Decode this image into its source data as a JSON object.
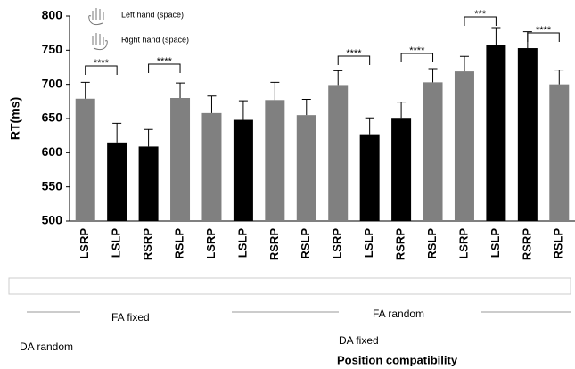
{
  "chart_data": {
    "type": "bar",
    "y_label": "RT(ms)",
    "x_label": "Position compatibility",
    "legend": [
      "Left hand (space)",
      "Right hand (space)"
    ],
    "group_labels": [
      "FA fixed",
      "FA random",
      "DA random",
      "DA fixed"
    ],
    "categories": [
      "LSRP",
      "LSLP",
      "RSRP",
      "RSLP",
      "LSRP",
      "LSLP",
      "RSRP",
      "RSLP",
      "LSRP",
      "LSLP",
      "RSRP",
      "RSLP",
      "LSRP",
      "LSLP",
      "RSRP",
      "RSLP"
    ],
    "values": [
      679,
      615,
      609,
      680,
      658,
      648,
      677,
      655,
      699,
      627,
      651,
      703,
      719,
      757,
      753,
      700
    ],
    "errors": [
      24,
      28,
      25,
      22,
      25,
      28,
      26,
      23,
      21,
      24,
      23,
      20,
      22,
      26,
      24,
      21
    ],
    "colors": [
      "#808080",
      "#000000",
      "#000000",
      "#808080",
      "#808080",
      "#000000",
      "#808080",
      "#808080",
      "#808080",
      "#000000",
      "#000000",
      "#808080",
      "#808080",
      "#000000",
      "#000000",
      "#808080"
    ],
    "annotations": [
      "****",
      "****",
      "****",
      "****",
      "***",
      "****"
    ],
    "ylim": [
      500,
      800
    ],
    "yticks": [
      500,
      550,
      600,
      650,
      700,
      750,
      800
    ]
  }
}
